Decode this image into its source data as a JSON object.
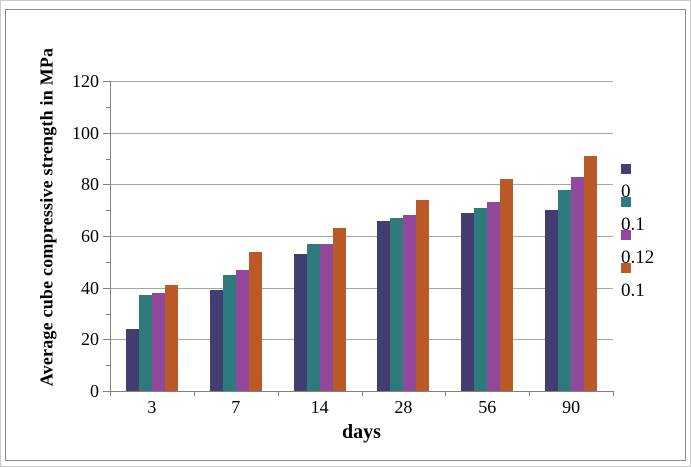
{
  "window": {
    "background": "#ffffff",
    "outer_border_color": "#c9c9c9",
    "frame_border_color": "#8d8d8d"
  },
  "chart_data": {
    "type": "bar",
    "title": "",
    "xlabel": "days",
    "ylabel": "Average cube compressive strength in MPa",
    "categories": [
      "3",
      "7",
      "14",
      "28",
      "56",
      "90"
    ],
    "series": [
      {
        "name": "0",
        "color": "#433e71",
        "values": [
          24,
          39,
          53,
          66,
          69,
          70
        ]
      },
      {
        "name": "0.1",
        "color": "#2f7a7d",
        "values": [
          37,
          45,
          57,
          67,
          71,
          78
        ]
      },
      {
        "name": "0.12",
        "color": "#93499b",
        "values": [
          38,
          47,
          57,
          68,
          73,
          83
        ]
      },
      {
        "name": "0.1",
        "color": "#bc5a27",
        "values": [
          41,
          54,
          63,
          74,
          82,
          91
        ]
      }
    ],
    "ylim": [
      0,
      120
    ],
    "yticks": [
      0,
      20,
      40,
      60,
      80,
      100,
      120
    ],
    "minor_tick_interval": 10,
    "grid": true,
    "gridline_color": "#a6a6a6",
    "axis_color": "#808080",
    "legend_position": "right"
  }
}
